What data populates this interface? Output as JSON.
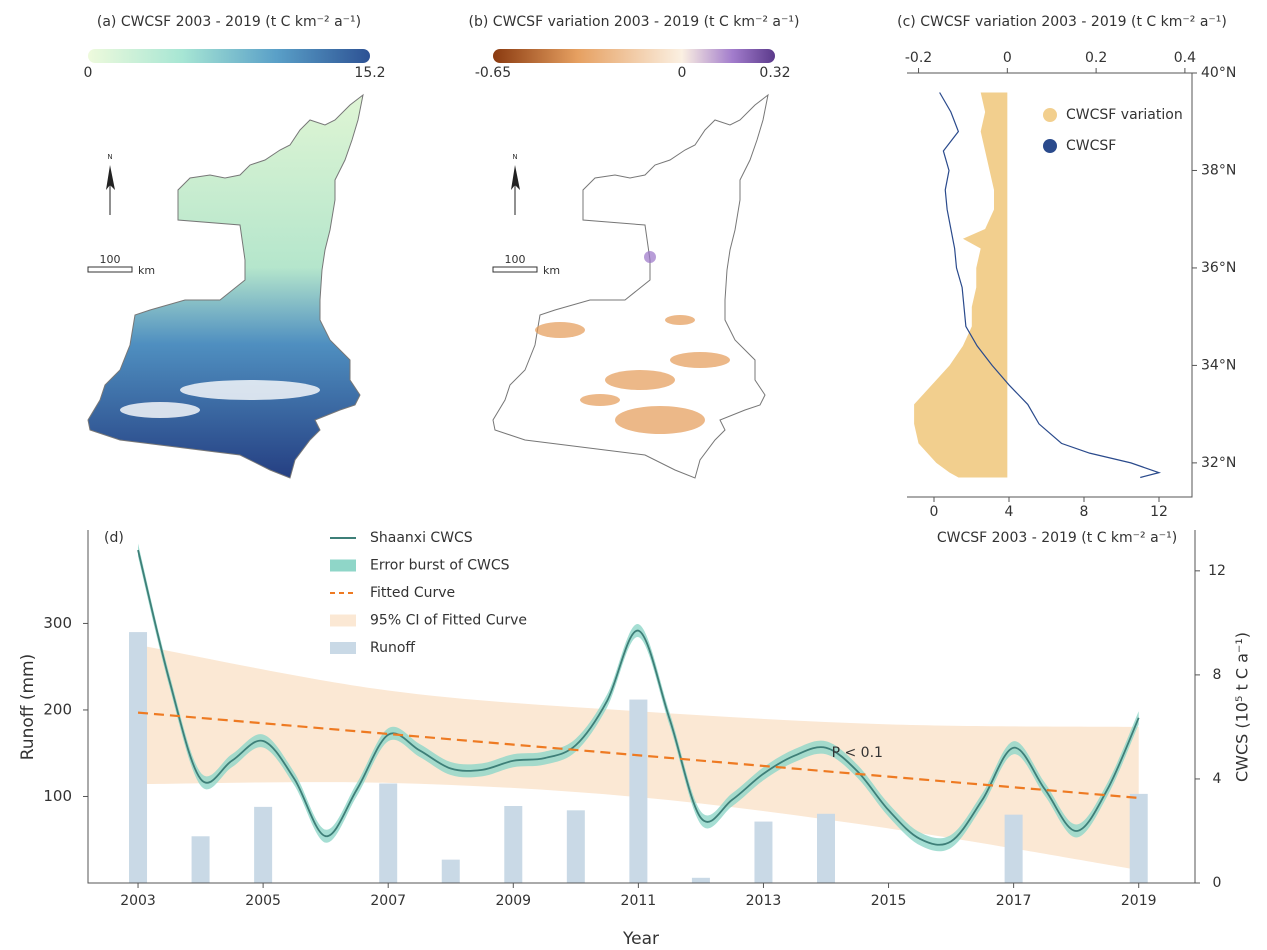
{
  "chart_data": [
    {
      "type": "map",
      "title": "(a) CWCSF 2003 - 2019 (t C km⁻² a⁻¹)",
      "colorbar_lim": [
        0,
        15.2
      ],
      "colorbar_ticks": [
        0,
        15.2
      ],
      "colors": [
        "#eefadc",
        "#a7e6d4",
        "#5aa0c8",
        "#2d5294"
      ],
      "north_label": "N",
      "scale_label": 100,
      "scale_unit": "km"
    },
    {
      "type": "map",
      "title": "(b) CWCSF variation 2003 - 2019 (t C km⁻² a⁻¹)",
      "colorbar_lim": [
        -0.65,
        0.32
      ],
      "colorbar_ticks": [
        -0.65,
        0,
        0.32
      ],
      "colors": [
        "#8a3a10",
        "#e6a061",
        "#fbf0e2",
        "#a27ccc",
        "#5b3a8b"
      ],
      "north_label": "N",
      "scale_label": 100,
      "scale_unit": "km"
    },
    {
      "type": "profile",
      "title": "(c) CWCSF variation 2003 - 2019 (t C km⁻² a⁻¹)",
      "xlabel": "CWCSF 2003 - 2019 (t C km⁻² a⁻¹)",
      "lat": [
        39.6,
        39.2,
        38.8,
        38.4,
        38.0,
        37.6,
        37.2,
        36.8,
        36.6,
        36.4,
        36.0,
        35.6,
        35.2,
        34.8,
        34.4,
        34.0,
        33.6,
        33.2,
        32.8,
        32.4,
        32.2,
        32.0,
        31.8,
        31.7
      ],
      "ylim": [
        31.3,
        40
      ],
      "yticks": [
        {
          "value": 32,
          "label": "32°N"
        },
        {
          "value": 34,
          "label": "34°N"
        },
        {
          "value": 36,
          "label": "36°N"
        },
        {
          "value": 38,
          "label": "38°N"
        },
        {
          "value": 40,
          "label": "40°N"
        }
      ],
      "xlim": [
        -1.44,
        13.76
      ],
      "xticks": [
        0,
        4,
        8,
        12
      ],
      "x2lim": [
        -0.226,
        0.416
      ],
      "x2ticks": [
        -0.2,
        0,
        0.2,
        0.4
      ],
      "series": [
        {
          "name": "CWCSF variation",
          "color": "#f2cf8e",
          "axis": "x2",
          "values": [
            -0.06,
            -0.05,
            -0.06,
            -0.05,
            -0.04,
            -0.03,
            -0.03,
            -0.05,
            -0.1,
            -0.06,
            -0.07,
            -0.07,
            -0.08,
            -0.08,
            -0.1,
            -0.13,
            -0.17,
            -0.21,
            -0.21,
            -0.2,
            -0.18,
            -0.16,
            -0.13,
            -0.11
          ]
        },
        {
          "name": "CWCSF",
          "color": "#2a4a8c",
          "values": [
            0.3,
            0.9,
            1.3,
            0.5,
            0.8,
            0.6,
            0.7,
            0.9,
            1.0,
            1.1,
            1.2,
            1.5,
            1.6,
            1.7,
            2.3,
            3.1,
            4.0,
            5.0,
            5.6,
            6.8,
            8.3,
            10.5,
            12.0,
            11.0
          ]
        }
      ]
    },
    {
      "type": "combo",
      "label": "(d)",
      "xlabel": "Year",
      "ylabel": "Runoff (mm)",
      "y2label": "CWCS (10⁵ t C a⁻¹)",
      "annotation": "P < 0.1",
      "annotation_x": 2014.5,
      "annotation_y": 5.0,
      "xlim": [
        2002.2,
        2019.9
      ],
      "xticks": [
        2003,
        2005,
        2007,
        2009,
        2011,
        2013,
        2015,
        2017,
        2019
      ],
      "ylim": [
        0,
        408
      ],
      "yticks": [
        100,
        200,
        300
      ],
      "y2lim": [
        0,
        13.57
      ],
      "y2ticks": [
        0,
        4,
        8,
        12
      ],
      "series": [
        {
          "name": "Shaanxi CWCS",
          "color": "#3e7f78",
          "axis": "y2",
          "x": [
            2003,
            2003.5,
            2004,
            2004.5,
            2005,
            2005.5,
            2006,
            2006.5,
            2007,
            2007.5,
            2008,
            2008.5,
            2009,
            2009.5,
            2010,
            2010.5,
            2011,
            2011.5,
            2012,
            2012.5,
            2013,
            2013.5,
            2014,
            2014.5,
            2015,
            2015.5,
            2016,
            2016.5,
            2017,
            2017.5,
            2018,
            2018.5,
            2019
          ],
          "values": [
            12.8,
            7.8,
            4.0,
            4.7,
            5.46,
            4.0,
            1.8,
            3.6,
            5.7,
            5.1,
            4.4,
            4.35,
            4.7,
            4.8,
            5.3,
            7.0,
            9.7,
            6.3,
            2.5,
            3.2,
            4.2,
            4.9,
            5.2,
            4.3,
            2.8,
            1.7,
            1.6,
            3.2,
            5.2,
            3.6,
            2.0,
            3.6,
            6.35
          ]
        },
        {
          "name": "Error burst of CWCS",
          "color": "#8fd6c8",
          "axis": "y2",
          "error": 0.25
        },
        {
          "name": "Fitted Curve",
          "color": "#ee7a22",
          "axis": "y2",
          "x": [
            2003,
            2019
          ],
          "values": [
            6.55,
            3.27
          ]
        },
        {
          "name": "95% CI of Fitted Curve",
          "color": "#fbe8d4",
          "axis": "y2",
          "x": [
            2003,
            2007,
            2011,
            2015,
            2019
          ],
          "upper": [
            9.15,
            7.4,
            6.6,
            6.1,
            6.0
          ],
          "lower": [
            3.8,
            3.85,
            3.3,
            2.1,
            0.5
          ]
        },
        {
          "name": "Runoff",
          "color": "#c9d9e6",
          "x": [
            2003,
            2004,
            2005,
            2006,
            2007,
            2008,
            2009,
            2010,
            2011,
            2012,
            2013,
            2014,
            2015,
            2016,
            2017,
            2018,
            2019
          ],
          "values": [
            290,
            54,
            88,
            null,
            115,
            27,
            89,
            84,
            212,
            6,
            71,
            80,
            null,
            null,
            79,
            null,
            103
          ]
        }
      ]
    }
  ]
}
